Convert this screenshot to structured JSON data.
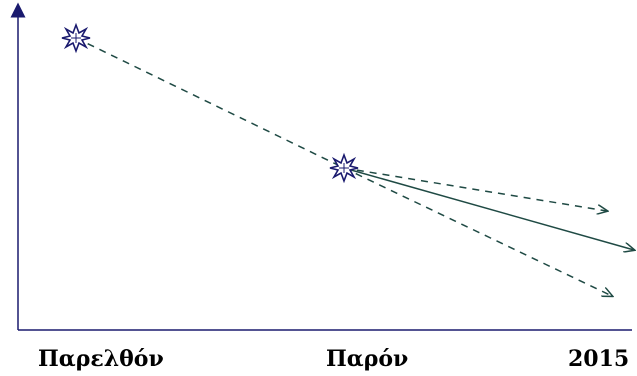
{
  "x_axis": {
    "labels": [
      "Παρελθόν",
      "Παρόν",
      "2015"
    ]
  },
  "colors": {
    "axis": "#1a1a6e",
    "trend_line": "#1f4a44",
    "marker_outline": "#1a1a6e"
  },
  "points": [
    {
      "name": "past-marker",
      "label": ""
    },
    {
      "name": "present-marker",
      "label": ""
    }
  ],
  "projections": [
    {
      "name": "upper-dashed-projection",
      "style": "dashed"
    },
    {
      "name": "central-solid-projection",
      "style": "solid"
    },
    {
      "name": "lower-dashed-projection",
      "style": "dashed"
    }
  ]
}
